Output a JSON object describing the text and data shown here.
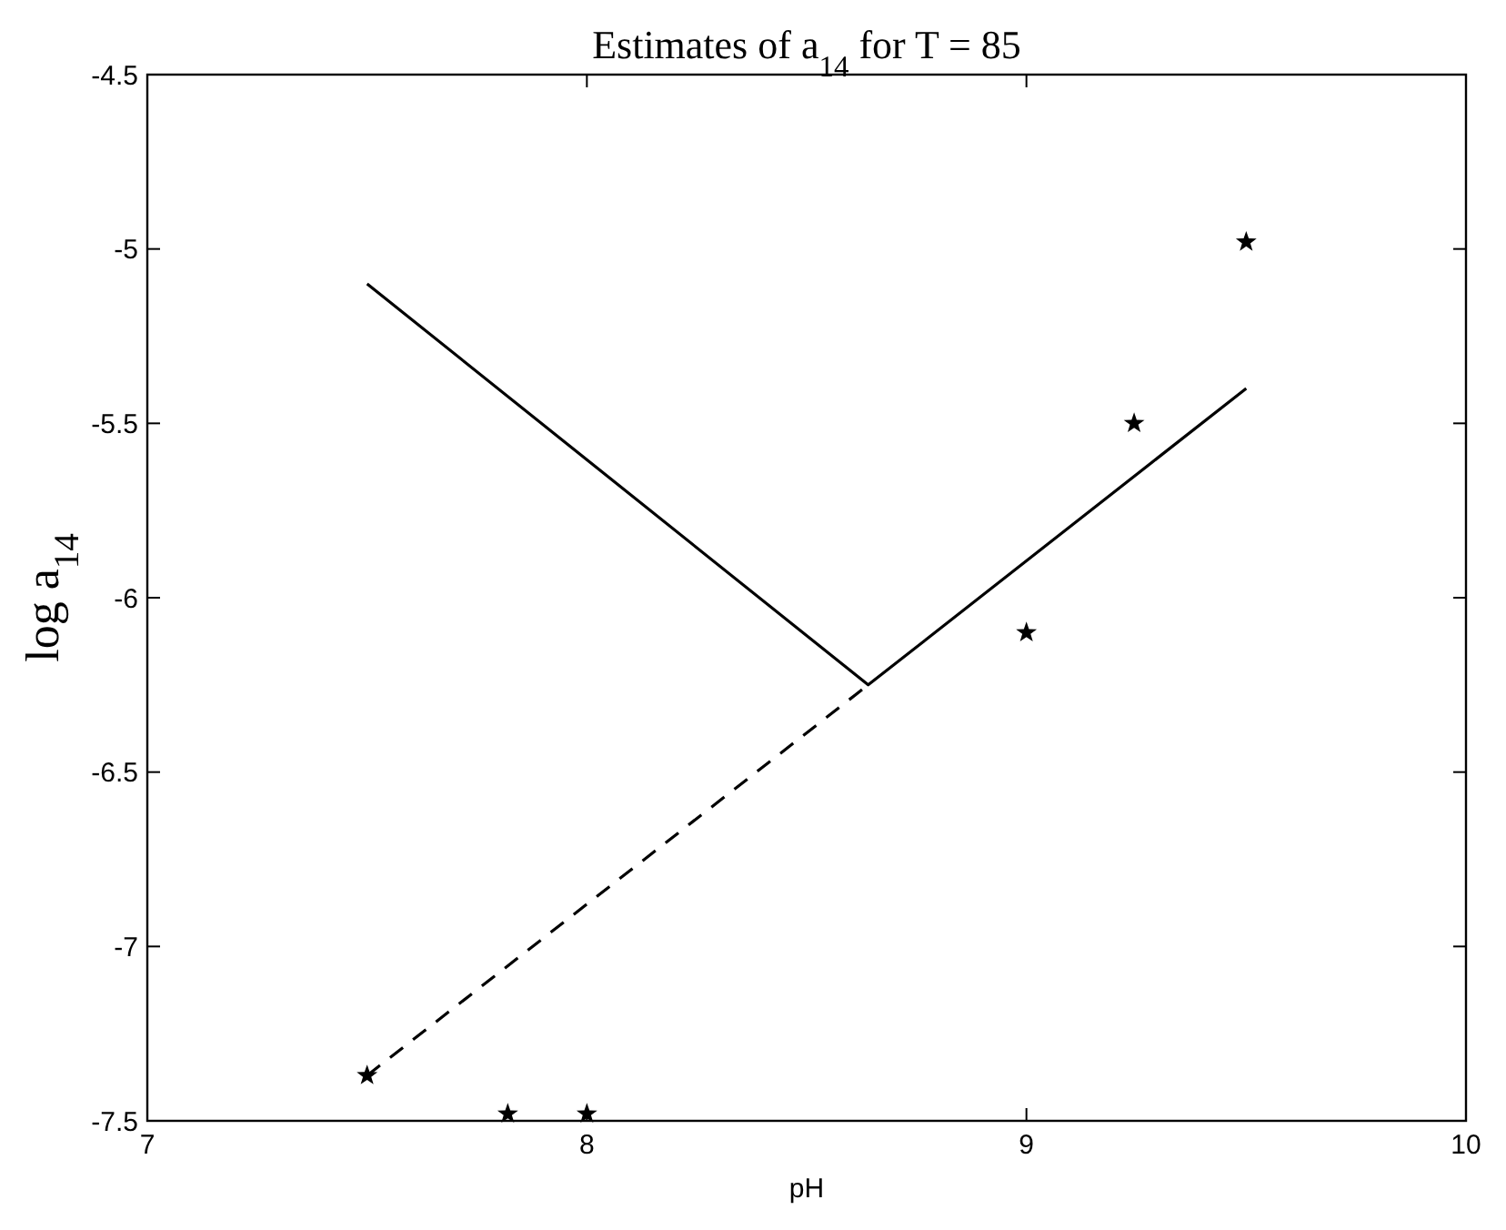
{
  "chart_data": {
    "type": "line",
    "title": "Estimates of a$_{14}$ for T = 85",
    "xlabel": "pH",
    "ylabel": "log a$_{14}$",
    "xlim": [
      7,
      10
    ],
    "xticks": [
      7,
      8,
      9,
      10
    ],
    "ylim": [
      -7.5,
      -4.5
    ],
    "yticks": [
      -7.5,
      -7,
      -6.5,
      -6,
      -5.5,
      -5,
      -4.5
    ],
    "grid": false,
    "series": [
      {
        "color": "#000000",
        "line_style": "solid",
        "x": [
          7.5,
          8.64,
          9.5
        ],
        "values": [
          -5.1,
          -6.25,
          -5.4
        ]
      },
      {
        "color": "#000000",
        "line_style": "dashed",
        "x": [
          7.5,
          8.64
        ],
        "values": [
          -7.37,
          -6.25
        ]
      },
      {
        "type": "scatter",
        "color": "#000000",
        "marker": "star",
        "x": [
          7.5,
          7.82,
          8.0,
          9.0,
          9.245,
          9.5
        ],
        "values": [
          -7.37,
          -7.48,
          -7.48,
          -6.1,
          -5.5,
          -4.98
        ]
      }
    ]
  }
}
